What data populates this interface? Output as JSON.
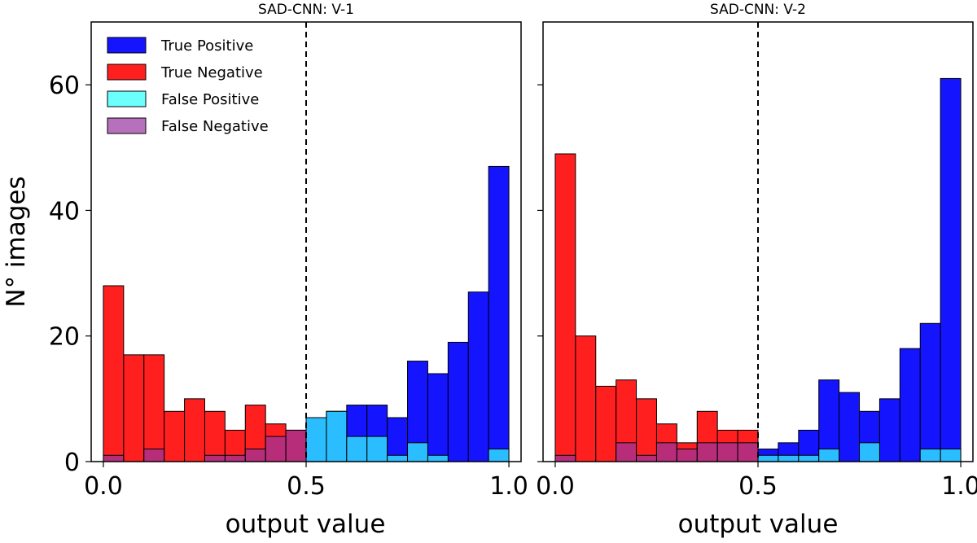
{
  "chart_data": {
    "type": "bar",
    "stacked": "overlapping",
    "ylabel": "N° images",
    "xlabel": "output value",
    "xlim": [
      -0.03,
      1.03
    ],
    "ylim": [
      0,
      70
    ],
    "xticks": [
      0.0,
      0.5,
      1.0
    ],
    "xtick_labels": [
      "0.0",
      "0.5",
      "1.0"
    ],
    "yticks": [
      0,
      20,
      40,
      60
    ],
    "ytick_labels": [
      "0",
      "20",
      "40",
      "60"
    ],
    "threshold": 0.5,
    "bin_width": 0.05,
    "legend_position": "top-left",
    "legend": [
      {
        "name": "True Positive",
        "color": "#0000ff"
      },
      {
        "name": "True Negative",
        "color": "#ff0000"
      },
      {
        "name": "False Positive",
        "color": "#33ffff"
      },
      {
        "name": "False Negative",
        "color": "#9933a0"
      }
    ],
    "panels": [
      {
        "title": "SAD-CNN: V-1",
        "series": [
          {
            "name": "True Negative",
            "bins": [
              [
                0.0,
                28
              ],
              [
                0.05,
                17
              ],
              [
                0.1,
                17
              ],
              [
                0.15,
                8
              ],
              [
                0.2,
                10
              ],
              [
                0.25,
                8
              ],
              [
                0.3,
                5
              ],
              [
                0.35,
                9
              ],
              [
                0.4,
                6
              ],
              [
                0.45,
                5
              ]
            ]
          },
          {
            "name": "True Positive",
            "bins": [
              [
                0.5,
                7
              ],
              [
                0.55,
                8
              ],
              [
                0.6,
                9
              ],
              [
                0.65,
                9
              ],
              [
                0.7,
                7
              ],
              [
                0.75,
                16
              ],
              [
                0.8,
                14
              ],
              [
                0.85,
                19
              ],
              [
                0.9,
                27
              ],
              [
                0.95,
                47
              ]
            ]
          },
          {
            "name": "False Positive",
            "bins": [
              [
                0.5,
                7
              ],
              [
                0.55,
                8
              ],
              [
                0.6,
                4
              ],
              [
                0.65,
                4
              ],
              [
                0.7,
                1
              ],
              [
                0.75,
                3
              ],
              [
                0.8,
                1
              ],
              [
                0.85,
                0
              ],
              [
                0.9,
                0
              ],
              [
                0.95,
                2
              ]
            ]
          },
          {
            "name": "False Negative",
            "bins": [
              [
                0.0,
                1
              ],
              [
                0.05,
                0
              ],
              [
                0.1,
                2
              ],
              [
                0.15,
                0
              ],
              [
                0.2,
                0
              ],
              [
                0.25,
                1
              ],
              [
                0.3,
                1
              ],
              [
                0.35,
                2
              ],
              [
                0.4,
                4
              ],
              [
                0.45,
                5
              ]
            ]
          }
        ]
      },
      {
        "title": "SAD-CNN: V-2",
        "series": [
          {
            "name": "True Negative",
            "bins": [
              [
                0.0,
                49
              ],
              [
                0.05,
                20
              ],
              [
                0.1,
                12
              ],
              [
                0.15,
                13
              ],
              [
                0.2,
                10
              ],
              [
                0.25,
                6
              ],
              [
                0.3,
                3
              ],
              [
                0.35,
                8
              ],
              [
                0.4,
                5
              ],
              [
                0.45,
                5
              ]
            ]
          },
          {
            "name": "True Positive",
            "bins": [
              [
                0.5,
                2
              ],
              [
                0.55,
                3
              ],
              [
                0.6,
                5
              ],
              [
                0.65,
                13
              ],
              [
                0.7,
                11
              ],
              [
                0.75,
                8
              ],
              [
                0.8,
                10
              ],
              [
                0.85,
                18
              ],
              [
                0.9,
                22
              ],
              [
                0.95,
                61
              ]
            ]
          },
          {
            "name": "False Positive",
            "bins": [
              [
                0.5,
                1
              ],
              [
                0.55,
                1
              ],
              [
                0.6,
                1
              ],
              [
                0.65,
                2
              ],
              [
                0.7,
                0
              ],
              [
                0.75,
                3
              ],
              [
                0.8,
                0
              ],
              [
                0.85,
                0
              ],
              [
                0.9,
                2
              ],
              [
                0.95,
                2
              ]
            ]
          },
          {
            "name": "False Negative",
            "bins": [
              [
                0.0,
                1
              ],
              [
                0.05,
                0
              ],
              [
                0.1,
                0
              ],
              [
                0.15,
                3
              ],
              [
                0.2,
                1
              ],
              [
                0.25,
                3
              ],
              [
                0.3,
                2
              ],
              [
                0.35,
                3
              ],
              [
                0.4,
                3
              ],
              [
                0.45,
                3
              ]
            ]
          }
        ]
      }
    ]
  }
}
